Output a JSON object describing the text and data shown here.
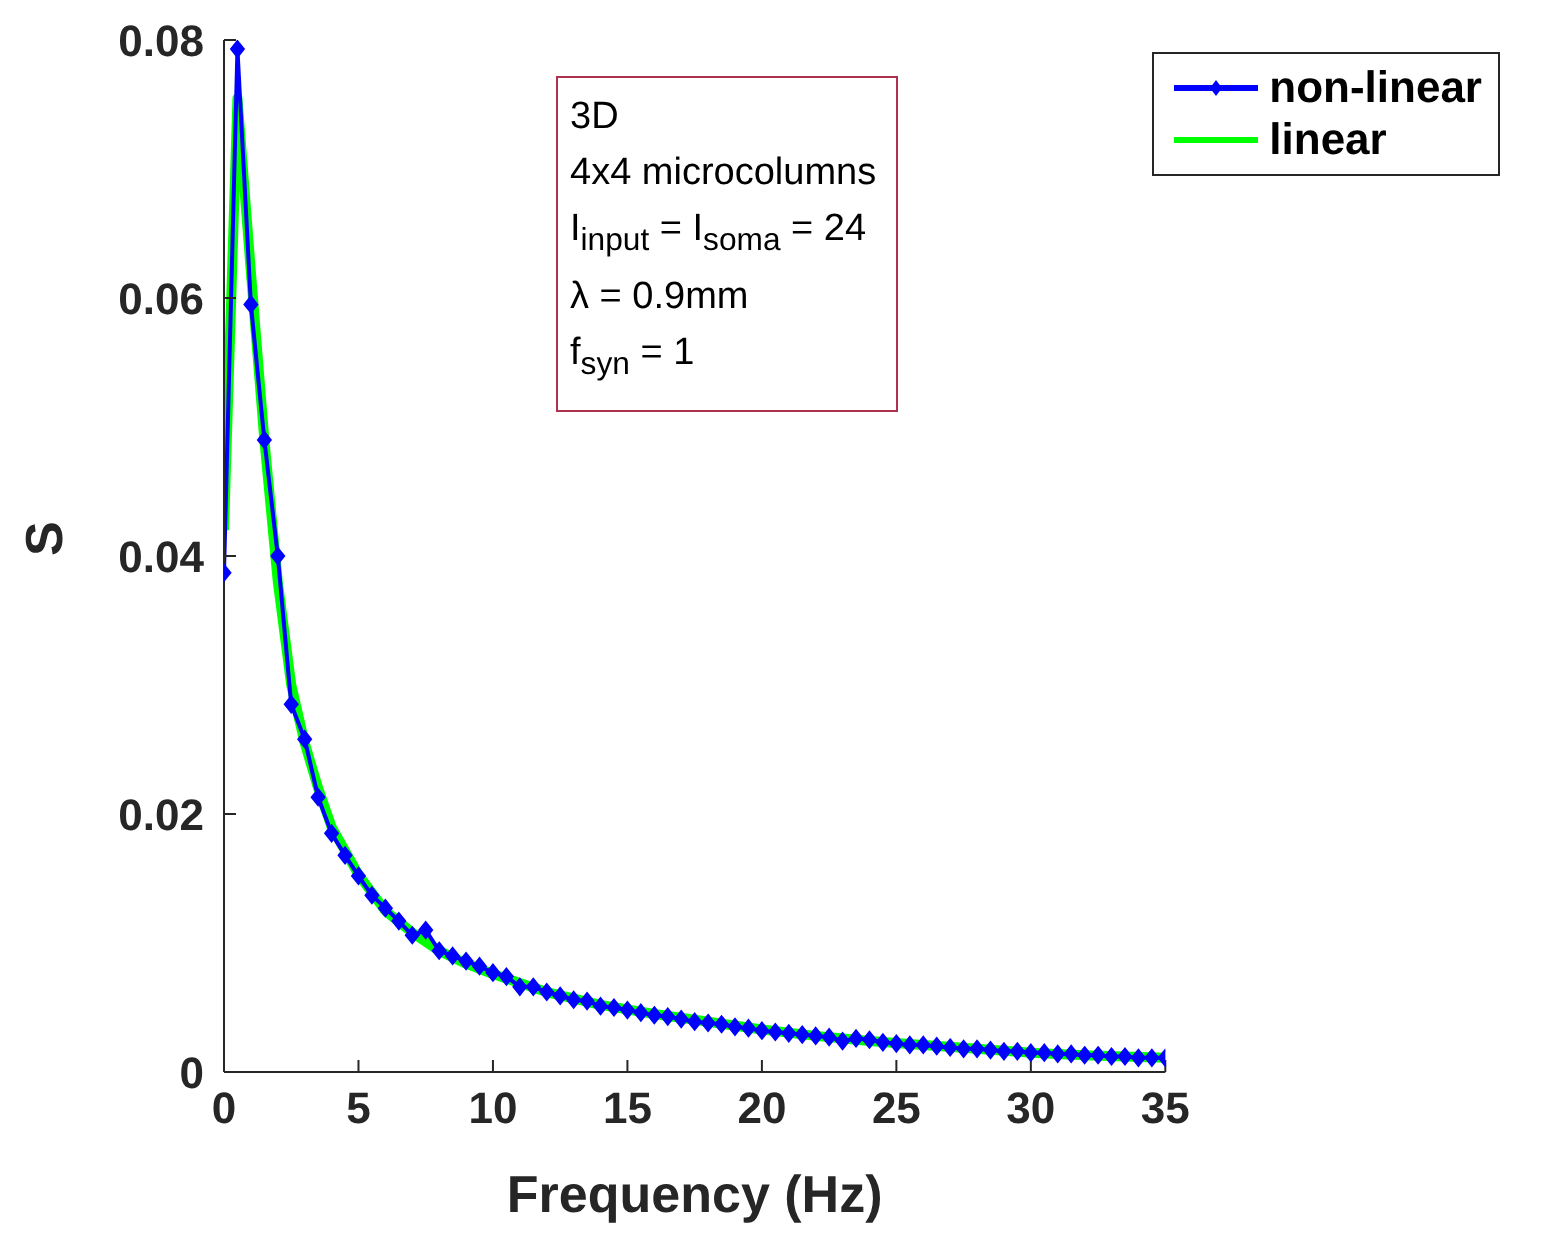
{
  "chart_data": {
    "type": "line",
    "xlabel": "Frequency (Hz)",
    "ylabel": "S",
    "xlim": [
      0,
      35
    ],
    "xticks": [
      0,
      5,
      10,
      15,
      20,
      25,
      30,
      35
    ],
    "ylim": [
      0,
      0.08
    ],
    "yticks": [
      0,
      0.02,
      0.04,
      0.06,
      0.08
    ],
    "grid": false,
    "legend": "top right",
    "annotations": [
      "3D",
      "4x4 microcolumns",
      "I$_{input}$ = I$_{soma}$ = 24",
      "λ = 0.9mm",
      "f$_{syn}$ = 1"
    ],
    "series": [
      {
        "name": "non-linear",
        "color": "#0000ff",
        "marker": "diamond",
        "x": [
          0,
          0.5,
          1,
          1.5,
          2,
          2.5,
          3,
          3.5,
          4,
          4.5,
          5,
          5.5,
          6,
          6.5,
          7,
          7.5,
          8,
          8.5,
          9,
          9.5,
          10,
          10.5,
          11,
          11.5,
          12,
          12.5,
          13,
          13.5,
          14,
          14.5,
          15,
          15.5,
          16,
          16.5,
          17,
          17.5,
          18,
          18.5,
          19,
          19.5,
          20,
          20.5,
          21,
          21.5,
          22,
          22.5,
          23,
          23.5,
          24,
          24.5,
          25,
          25.5,
          26,
          26.5,
          27,
          27.5,
          28,
          28.5,
          29,
          29.5,
          30,
          30.5,
          31,
          31.5,
          32,
          32.5,
          33,
          33.5,
          34,
          34.5,
          35
        ],
        "values": [
          0.0387,
          0.0793,
          0.0595,
          0.049,
          0.04,
          0.0285,
          0.0258,
          0.0213,
          0.0185,
          0.0168,
          0.0152,
          0.0137,
          0.0127,
          0.0117,
          0.0106,
          0.011,
          0.0094,
          0.009,
          0.0086,
          0.0082,
          0.0077,
          0.0074,
          0.0066,
          0.0066,
          0.0062,
          0.0059,
          0.0056,
          0.0055,
          0.0051,
          0.005,
          0.0048,
          0.0046,
          0.0044,
          0.0043,
          0.0041,
          0.0039,
          0.0038,
          0.0037,
          0.0035,
          0.0034,
          0.0032,
          0.0031,
          0.003,
          0.0029,
          0.0028,
          0.0027,
          0.0024,
          0.0026,
          0.0025,
          0.0023,
          0.0022,
          0.0021,
          0.0021,
          0.002,
          0.0019,
          0.0018,
          0.0018,
          0.0017,
          0.0016,
          0.0016,
          0.0015,
          0.0015,
          0.0014,
          0.0014,
          0.0013,
          0.0013,
          0.0012,
          0.0012,
          0.0011,
          0.0011,
          0.0011
        ]
      },
      {
        "name": "linear",
        "color": "#00ff00",
        "x": [
          0,
          0.5,
          1,
          1.5,
          2,
          2.5,
          3,
          3.5,
          4,
          5,
          6,
          7,
          8,
          9,
          10,
          12,
          14,
          16,
          18,
          20,
          22,
          24,
          26,
          28,
          30,
          32,
          35
        ],
        "values": [
          0.042,
          0.0755,
          0.062,
          0.049,
          0.038,
          0.03,
          0.0255,
          0.022,
          0.019,
          0.0153,
          0.0125,
          0.0108,
          0.0094,
          0.0084,
          0.0076,
          0.0062,
          0.0052,
          0.0045,
          0.0039,
          0.0033,
          0.0028,
          0.0024,
          0.0021,
          0.0018,
          0.0015,
          0.0013,
          0.0011
        ]
      }
    ]
  }
}
